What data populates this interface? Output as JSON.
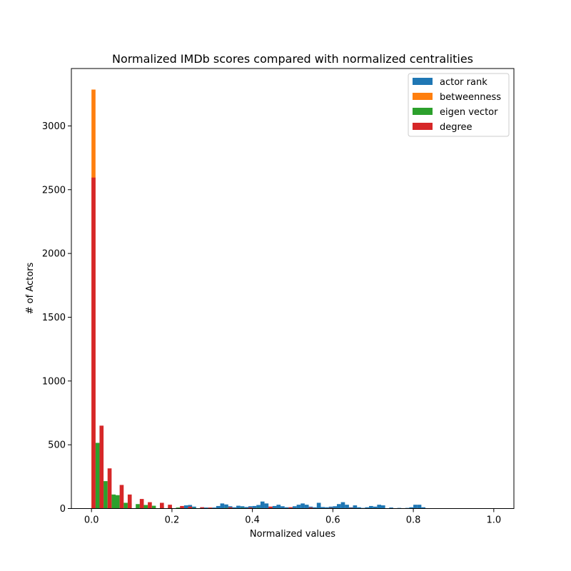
{
  "chart_data": {
    "type": "bar",
    "title": "Normalized IMDb scores compared with normalized centralities",
    "xlabel": "Normalized values",
    "ylabel": "# of Actors",
    "xlim": [
      -0.05,
      1.05
    ],
    "ylim": [
      0,
      3450
    ],
    "x_ticks": [
      0.0,
      0.2,
      0.4,
      0.6,
      0.8,
      1.0
    ],
    "x_tick_labels": [
      "0.0",
      "0.2",
      "0.4",
      "0.6",
      "0.8",
      "1.0"
    ],
    "y_ticks": [
      0,
      500,
      1000,
      1500,
      2000,
      2500,
      3000
    ],
    "y_tick_labels": [
      "0",
      "500",
      "1000",
      "1500",
      "2000",
      "2500",
      "3000"
    ],
    "bin_width": 0.01,
    "legend_position": "top-right",
    "grid": false,
    "series": [
      {
        "name": "actor rank",
        "color": "#1f77b4",
        "points": [
          [
            0.0,
            5
          ],
          [
            0.22,
            10
          ],
          [
            0.23,
            25
          ],
          [
            0.24,
            28
          ],
          [
            0.25,
            15
          ],
          [
            0.27,
            10
          ],
          [
            0.28,
            8
          ],
          [
            0.3,
            8
          ],
          [
            0.31,
            20
          ],
          [
            0.32,
            40
          ],
          [
            0.33,
            32
          ],
          [
            0.34,
            18
          ],
          [
            0.35,
            10
          ],
          [
            0.36,
            22
          ],
          [
            0.37,
            18
          ],
          [
            0.38,
            12
          ],
          [
            0.39,
            18
          ],
          [
            0.4,
            20
          ],
          [
            0.41,
            28
          ],
          [
            0.42,
            55
          ],
          [
            0.43,
            40
          ],
          [
            0.44,
            15
          ],
          [
            0.45,
            20
          ],
          [
            0.46,
            30
          ],
          [
            0.47,
            18
          ],
          [
            0.48,
            10
          ],
          [
            0.49,
            10
          ],
          [
            0.5,
            18
          ],
          [
            0.51,
            30
          ],
          [
            0.52,
            40
          ],
          [
            0.53,
            30
          ],
          [
            0.54,
            15
          ],
          [
            0.55,
            10
          ],
          [
            0.56,
            45
          ],
          [
            0.57,
            12
          ],
          [
            0.58,
            10
          ],
          [
            0.59,
            15
          ],
          [
            0.6,
            18
          ],
          [
            0.61,
            35
          ],
          [
            0.62,
            50
          ],
          [
            0.63,
            30
          ],
          [
            0.64,
            10
          ],
          [
            0.65,
            25
          ],
          [
            0.66,
            10
          ],
          [
            0.67,
            5
          ],
          [
            0.68,
            10
          ],
          [
            0.69,
            20
          ],
          [
            0.7,
            15
          ],
          [
            0.71,
            30
          ],
          [
            0.72,
            25
          ],
          [
            0.74,
            8
          ],
          [
            0.76,
            5
          ],
          [
            0.78,
            5
          ],
          [
            0.79,
            10
          ],
          [
            0.8,
            30
          ],
          [
            0.81,
            30
          ],
          [
            0.82,
            10
          ]
        ]
      },
      {
        "name": "betweenness",
        "color": "#ff7f0e",
        "points": [
          [
            0.0,
            3285
          ],
          [
            0.01,
            5
          ],
          [
            0.02,
            3
          ]
        ]
      },
      {
        "name": "eigen vector",
        "color": "#2ca02c",
        "points": [
          [
            0.01,
            515
          ],
          [
            0.03,
            215
          ],
          [
            0.05,
            110
          ],
          [
            0.06,
            105
          ],
          [
            0.08,
            45
          ],
          [
            0.09,
            45
          ],
          [
            0.11,
            35
          ],
          [
            0.13,
            28
          ],
          [
            0.15,
            22
          ],
          [
            0.17,
            18
          ],
          [
            0.19,
            12
          ],
          [
            0.21,
            8
          ],
          [
            0.25,
            5
          ],
          [
            0.29,
            5
          ],
          [
            0.33,
            5
          ],
          [
            0.37,
            5
          ],
          [
            0.41,
            5
          ]
        ]
      },
      {
        "name": "degree",
        "color": "#d62728",
        "points": [
          [
            0.0,
            2595
          ],
          [
            0.02,
            650
          ],
          [
            0.04,
            315
          ],
          [
            0.07,
            185
          ],
          [
            0.09,
            110
          ],
          [
            0.12,
            75
          ],
          [
            0.14,
            50
          ],
          [
            0.17,
            45
          ],
          [
            0.19,
            30
          ],
          [
            0.22,
            20
          ],
          [
            0.24,
            15
          ],
          [
            0.27,
            10
          ],
          [
            0.29,
            8
          ],
          [
            0.34,
            10
          ],
          [
            0.39,
            8
          ],
          [
            0.44,
            15
          ],
          [
            0.49,
            10
          ],
          [
            0.54,
            8
          ],
          [
            0.59,
            5
          ],
          [
            0.64,
            5
          ]
        ]
      }
    ]
  }
}
